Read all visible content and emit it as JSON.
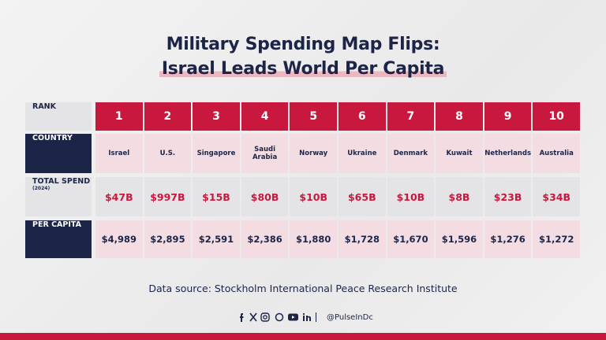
{
  "header": {
    "title_lines": [
      "Military Spending Map Flips:",
      "Israel Leads World Per Capita"
    ]
  },
  "table": {
    "row_labels": [
      "RANK",
      "COUNTRY",
      "TOTAL SPEND",
      "PER CAPITA"
    ],
    "row_label_note": "(2024)",
    "rows": [
      [
        "1",
        "2",
        "3",
        "4",
        "5",
        "6",
        "7",
        "8",
        "9",
        "10"
      ],
      [
        "Israel",
        "U.S.",
        "Singapore",
        "Saudi Arabia",
        "Norway",
        "Ukraine",
        "Denmark",
        "Kuwait",
        "Netherlands",
        "Australia"
      ],
      [
        "$47B",
        "$997B",
        "$15B",
        "$80B",
        "$10B",
        "$65B",
        "$10B",
        "$8B",
        "$23B",
        "$34B"
      ],
      [
        "$4,989",
        "$2,895",
        "$2,591",
        "$2,386",
        "$1,880",
        "$1,728",
        "$1,670",
        "$1,596",
        "$1,276",
        "$1,272"
      ]
    ]
  },
  "footer": {
    "source": "Data source: Stockholm International Peace Research Institute",
    "handle": "@PulseInDc"
  }
}
